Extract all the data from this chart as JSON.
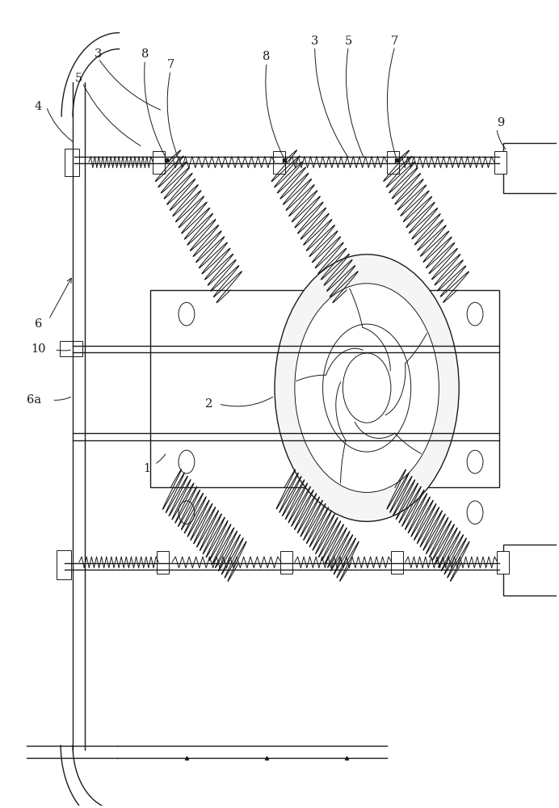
{
  "bg_color": "#ffffff",
  "line_color": "#1a1a1a",
  "fig_width": 6.92,
  "fig_height": 10.0,
  "dpi": 100
}
